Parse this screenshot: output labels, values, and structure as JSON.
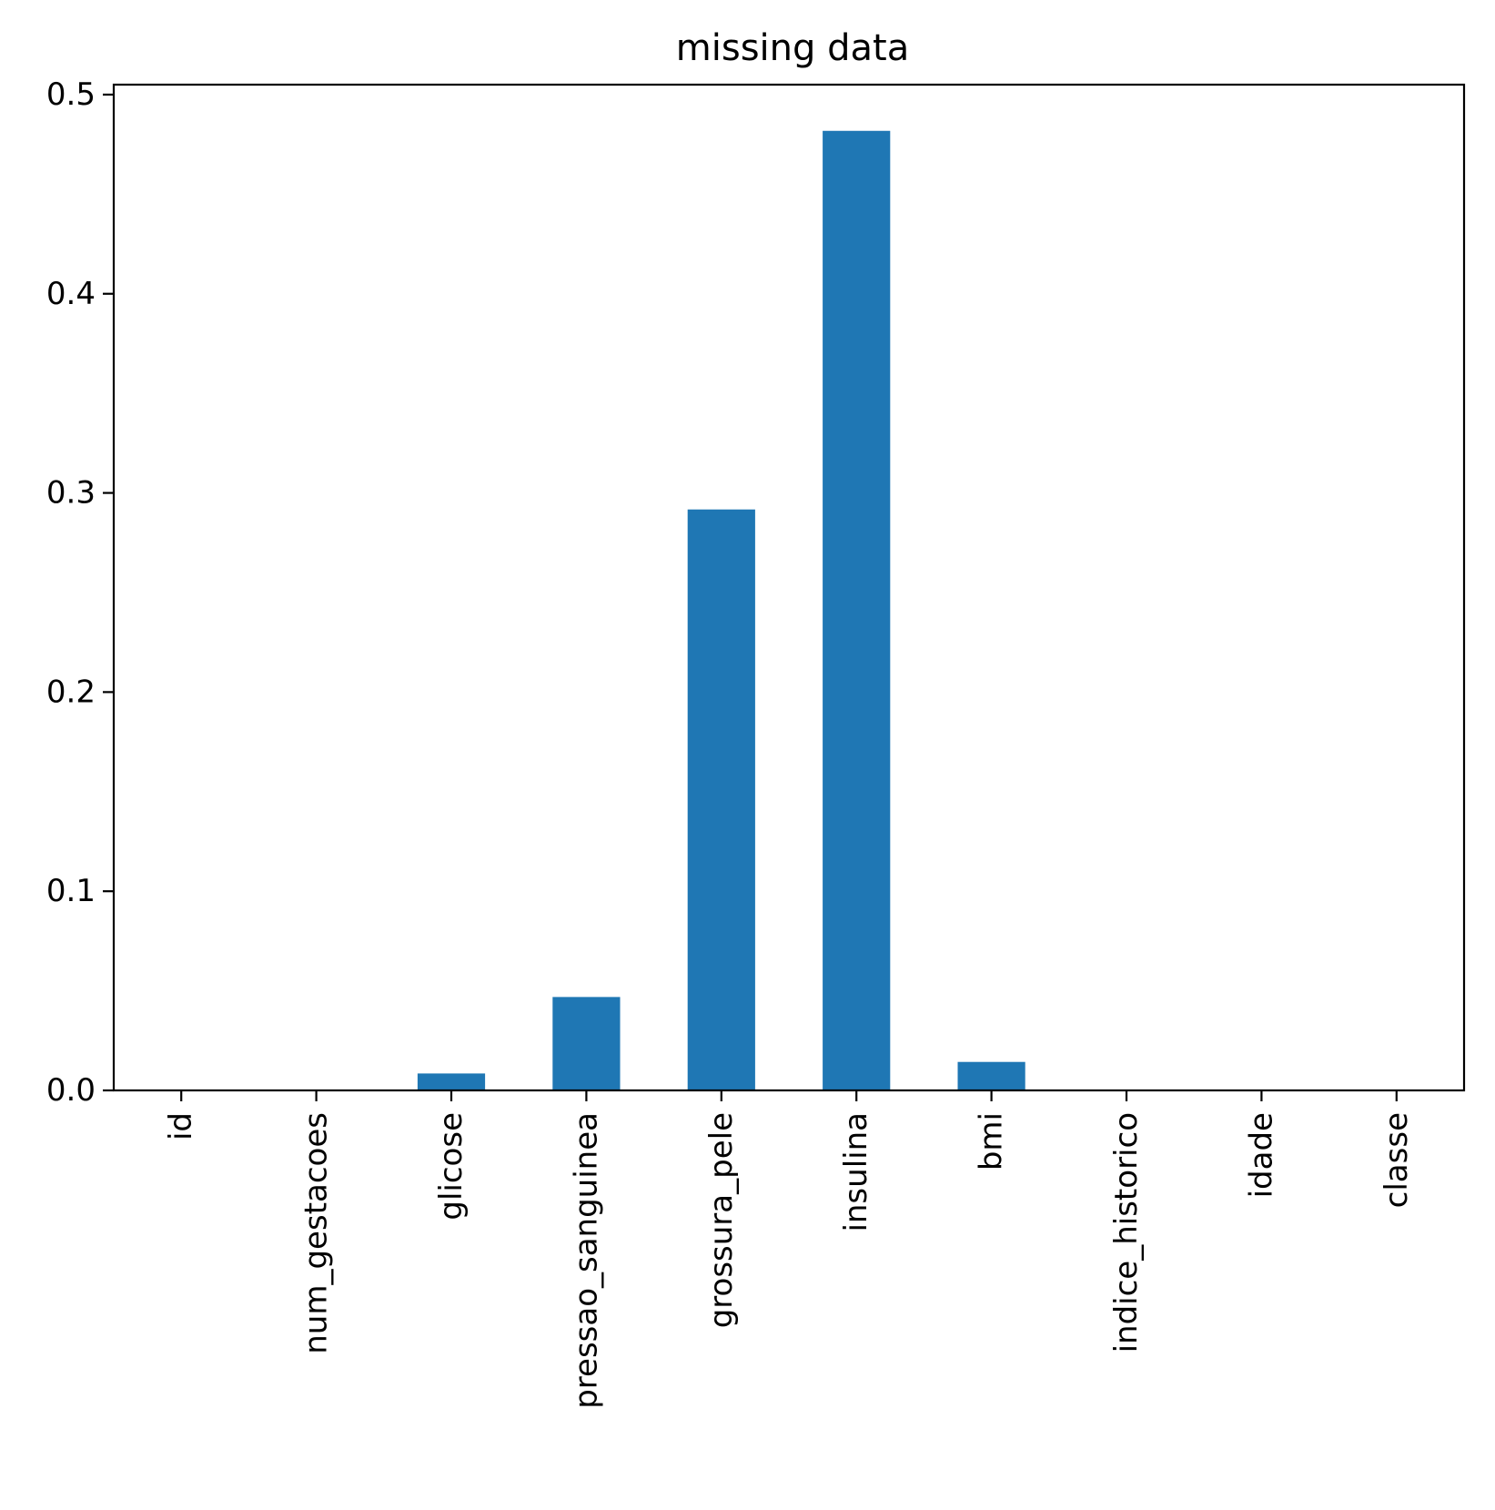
{
  "chart_data": {
    "type": "bar",
    "title": "missing data",
    "xlabel": "",
    "ylabel": "",
    "categories": [
      "id",
      "num_gestacoes",
      "glicose",
      "pressao_sanguinea",
      "grossura_pele",
      "insulina",
      "bmi",
      "indice_historico",
      "idade",
      "classe"
    ],
    "values": [
      0.0,
      0.0,
      0.0085,
      0.0469,
      0.2917,
      0.4818,
      0.0143,
      0.0,
      0.0,
      0.0
    ],
    "ylim": [
      0,
      0.505
    ],
    "yticks": [
      0.0,
      0.1,
      0.2,
      0.3,
      0.4,
      0.5
    ],
    "ytick_labels": [
      "0.0",
      "0.1",
      "0.2",
      "0.3",
      "0.4",
      "0.5"
    ],
    "bar_color": "#1f77b4",
    "grid": false,
    "legend": "none"
  }
}
